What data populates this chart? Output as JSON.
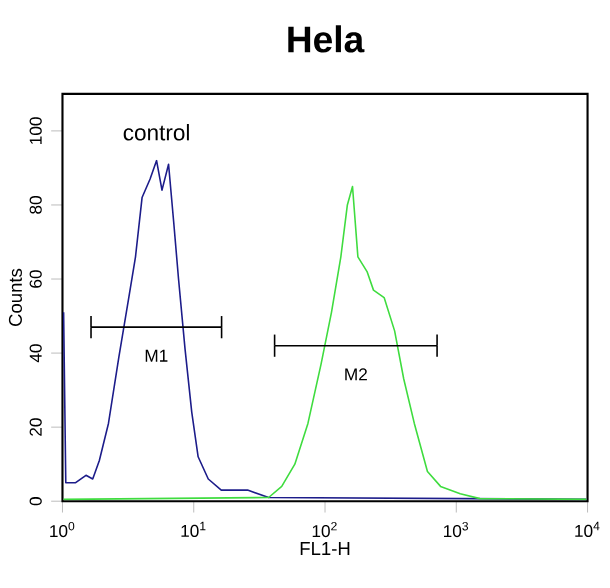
{
  "chart_data": {
    "type": "line",
    "title": "Hela",
    "xlabel": "FL1-H",
    "ylabel": "Counts",
    "log": "x",
    "xlim": [
      1,
      10000
    ],
    "ylim": [
      0,
      110
    ],
    "xticks": [
      {
        "value": 1,
        "label": "10$^{0}$"
      },
      {
        "value": 10,
        "label": "10$^{1}$"
      },
      {
        "value": 100,
        "label": "10$^{2}$"
      },
      {
        "value": 1000,
        "label": "10$^{3}$"
      },
      {
        "value": 10000,
        "label": "10$^{4}$"
      }
    ],
    "yticks": [
      0,
      20,
      40,
      60,
      80,
      100
    ],
    "marker": "none",
    "grid": false,
    "legend": false,
    "series": [
      {
        "name": "control",
        "color": "#1c1c8a",
        "x": [
          1.02,
          1.06,
          1.26,
          1.51,
          1.7,
          1.91,
          2.24,
          2.69,
          3.2,
          3.6,
          4.04,
          4.65,
          5.21,
          5.73,
          6.43,
          7.05,
          7.66,
          8.59,
          9.66,
          10.8,
          12.9,
          16.2,
          25.7,
          37.2,
          9800
        ],
        "values": [
          51,
          5,
          5,
          7,
          6,
          11,
          21,
          39,
          55,
          66,
          82,
          87,
          92,
          84,
          91,
          75,
          60,
          41,
          24,
          12,
          6,
          3,
          3,
          1,
          0.5
        ]
      },
      {
        "color": "#3fdc3f",
        "x": [
          1.02,
          37.2,
          46.8,
          58.9,
          74.1,
          93.3,
          112,
          132,
          148,
          162,
          178,
          209,
          234,
          282,
          339,
          398,
          479,
          603,
          759,
          1072,
          1514,
          9800
        ],
        "values": [
          0.5,
          1,
          4,
          10,
          21,
          37,
          51,
          66,
          80,
          85,
          66,
          62,
          57,
          55,
          46,
          33,
          21,
          8,
          4,
          2,
          0.7,
          0.5
        ]
      },
      {
        "name": "M1",
        "color": "#000000",
        "x": [
          1.65,
          16.3
        ],
        "values": [
          47,
          47
        ],
        "errors": [
          3,
          3
        ]
      },
      {
        "name": "M2",
        "color": "#000000",
        "x": [
          41.3,
          714
        ],
        "values": [
          42,
          42
        ],
        "errors": [
          3,
          3
        ]
      }
    ]
  }
}
